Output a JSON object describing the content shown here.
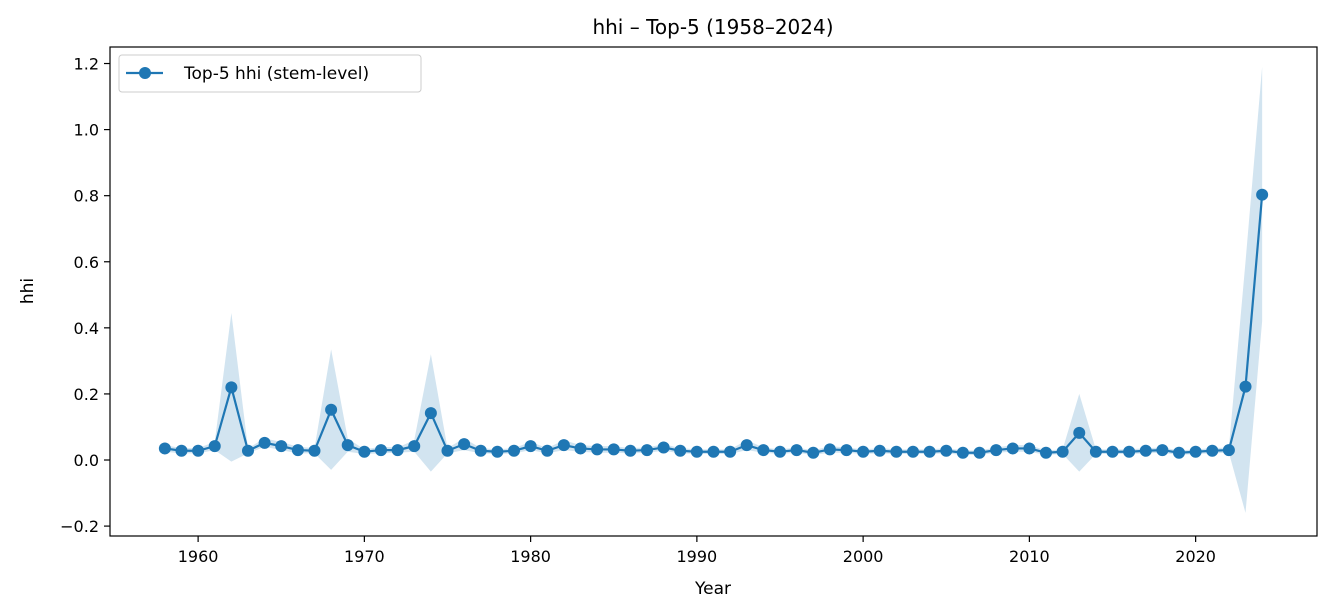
{
  "chart_data": {
    "type": "line",
    "title": "hhi – Top-5 (1958–2024)",
    "xlabel": "Year",
    "ylabel": "hhi",
    "xlim": [
      1954.7,
      2027.3
    ],
    "ylim": [
      -0.23,
      1.25
    ],
    "xticks": [
      1960,
      1970,
      1980,
      1990,
      2000,
      2010,
      2020
    ],
    "yticks": [
      -0.2,
      0.0,
      0.2,
      0.4,
      0.6,
      0.8,
      1.0,
      1.2
    ],
    "ytick_labels": [
      "−0.2",
      "0.0",
      "0.2",
      "0.4",
      "0.6",
      "0.8",
      "1.0",
      "1.2"
    ],
    "grid": false,
    "legend_position": "top-left",
    "line_color": "#1f77b4",
    "band_color": "#1f77b4",
    "series": [
      {
        "name": "Top-5 hhi (stem-level)",
        "x": [
          1958,
          1959,
          1960,
          1961,
          1962,
          1963,
          1964,
          1965,
          1966,
          1967,
          1968,
          1969,
          1970,
          1971,
          1972,
          1973,
          1974,
          1975,
          1976,
          1977,
          1978,
          1979,
          1980,
          1981,
          1982,
          1983,
          1984,
          1985,
          1986,
          1987,
          1988,
          1989,
          1990,
          1991,
          1992,
          1993,
          1994,
          1995,
          1996,
          1997,
          1998,
          1999,
          2000,
          2001,
          2002,
          2003,
          2004,
          2005,
          2006,
          2007,
          2008,
          2009,
          2010,
          2011,
          2012,
          2013,
          2014,
          2015,
          2016,
          2017,
          2018,
          2019,
          2020,
          2021,
          2022,
          2023,
          2024
        ],
        "y": [
          0.035,
          0.028,
          0.028,
          0.042,
          0.22,
          0.028,
          0.052,
          0.042,
          0.03,
          0.028,
          0.152,
          0.045,
          0.025,
          0.03,
          0.03,
          0.042,
          0.142,
          0.028,
          0.048,
          0.028,
          0.025,
          0.028,
          0.042,
          0.028,
          0.045,
          0.035,
          0.032,
          0.032,
          0.028,
          0.03,
          0.038,
          0.028,
          0.025,
          0.025,
          0.025,
          0.045,
          0.03,
          0.025,
          0.03,
          0.022,
          0.032,
          0.03,
          0.025,
          0.028,
          0.025,
          0.025,
          0.025,
          0.028,
          0.022,
          0.022,
          0.03,
          0.035,
          0.035,
          0.022,
          0.025,
          0.082,
          0.025,
          0.025,
          0.025,
          0.028,
          0.03,
          0.022,
          0.025,
          0.028,
          0.03,
          0.222,
          0.803
        ],
        "band_lower": [
          0.025,
          0.02,
          0.02,
          0.03,
          -0.005,
          0.02,
          0.04,
          0.03,
          0.02,
          0.02,
          -0.03,
          0.025,
          0.018,
          0.02,
          0.022,
          0.025,
          -0.035,
          0.02,
          0.03,
          0.02,
          0.018,
          0.02,
          0.03,
          0.02,
          0.03,
          0.025,
          0.022,
          0.022,
          0.02,
          0.022,
          0.028,
          0.02,
          0.018,
          0.018,
          0.018,
          0.03,
          0.022,
          0.018,
          0.022,
          0.015,
          0.022,
          0.022,
          0.018,
          0.02,
          0.018,
          0.018,
          0.018,
          0.02,
          0.015,
          0.015,
          0.022,
          0.025,
          0.025,
          0.015,
          0.018,
          -0.035,
          0.018,
          0.018,
          0.018,
          0.02,
          0.022,
          0.015,
          0.018,
          0.02,
          0.022,
          -0.16,
          0.42
        ],
        "band_upper": [
          0.045,
          0.036,
          0.036,
          0.055,
          0.445,
          0.036,
          0.065,
          0.055,
          0.04,
          0.036,
          0.335,
          0.065,
          0.032,
          0.04,
          0.038,
          0.06,
          0.32,
          0.036,
          0.066,
          0.036,
          0.032,
          0.036,
          0.055,
          0.036,
          0.06,
          0.045,
          0.042,
          0.042,
          0.036,
          0.038,
          0.048,
          0.036,
          0.032,
          0.032,
          0.032,
          0.06,
          0.038,
          0.032,
          0.038,
          0.029,
          0.042,
          0.038,
          0.032,
          0.036,
          0.032,
          0.032,
          0.032,
          0.036,
          0.029,
          0.029,
          0.038,
          0.045,
          0.045,
          0.029,
          0.032,
          0.2,
          0.032,
          0.032,
          0.032,
          0.036,
          0.038,
          0.029,
          0.032,
          0.036,
          0.038,
          0.6,
          1.19
        ]
      }
    ]
  }
}
